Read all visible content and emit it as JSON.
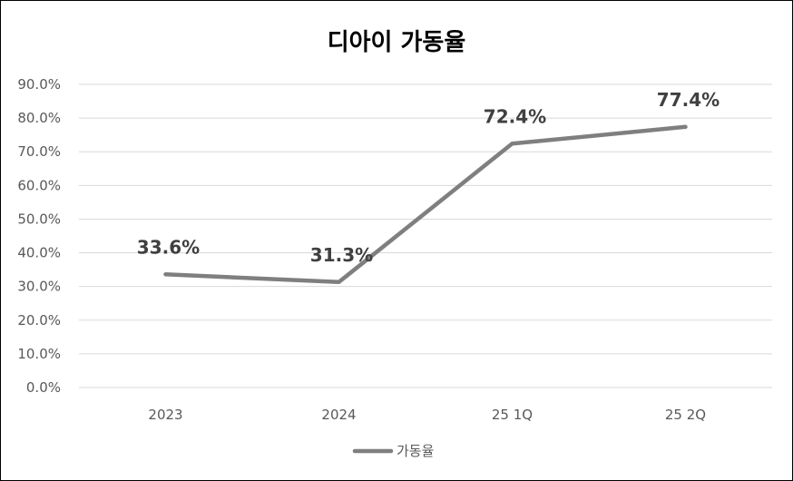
{
  "chart_data": {
    "type": "line",
    "title": "디아이 가동율",
    "categories": [
      "2023",
      "2024",
      "25 1Q",
      "25 2Q"
    ],
    "series": [
      {
        "name": "가동율",
        "values": [
          33.6,
          31.3,
          72.4,
          77.4
        ],
        "data_labels": [
          "33.6%",
          "31.3%",
          "72.4%",
          "77.4%"
        ],
        "color": "#7f7f7f"
      }
    ],
    "y_ticks": [
      "0.0%",
      "10.0%",
      "20.0%",
      "30.0%",
      "40.0%",
      "50.0%",
      "60.0%",
      "70.0%",
      "80.0%",
      "90.0%"
    ],
    "ylim": [
      0,
      90
    ],
    "grid": true,
    "legend_position": "bottom",
    "xlabel": "",
    "ylabel": ""
  }
}
